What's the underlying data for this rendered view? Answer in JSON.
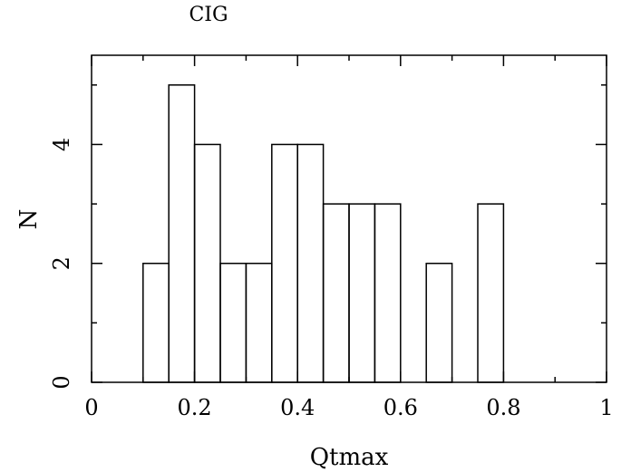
{
  "chart_data": {
    "type": "bar",
    "title": "CIG",
    "xlabel": "Qtmax",
    "ylabel": "N",
    "xlim": [
      0,
      1
    ],
    "ylim": [
      0,
      5.5
    ],
    "bin_width": 0.05,
    "bins": [
      {
        "x0": 0.1,
        "x1": 0.15,
        "value": 2
      },
      {
        "x0": 0.15,
        "x1": 0.2,
        "value": 5
      },
      {
        "x0": 0.2,
        "x1": 0.25,
        "value": 4
      },
      {
        "x0": 0.25,
        "x1": 0.3,
        "value": 2
      },
      {
        "x0": 0.3,
        "x1": 0.35,
        "value": 2
      },
      {
        "x0": 0.35,
        "x1": 0.4,
        "value": 4
      },
      {
        "x0": 0.4,
        "x1": 0.45,
        "value": 4
      },
      {
        "x0": 0.45,
        "x1": 0.5,
        "value": 3
      },
      {
        "x0": 0.5,
        "x1": 0.55,
        "value": 3
      },
      {
        "x0": 0.55,
        "x1": 0.6,
        "value": 3
      },
      {
        "x0": 0.65,
        "x1": 0.7,
        "value": 2
      },
      {
        "x0": 0.75,
        "x1": 0.8,
        "value": 3
      }
    ],
    "x_ticks": [
      "0",
      "0.2",
      "0.4",
      "0.6",
      "0.8",
      "1"
    ],
    "y_ticks": [
      "0",
      "2",
      "4"
    ],
    "grid": false,
    "legend": "none"
  }
}
